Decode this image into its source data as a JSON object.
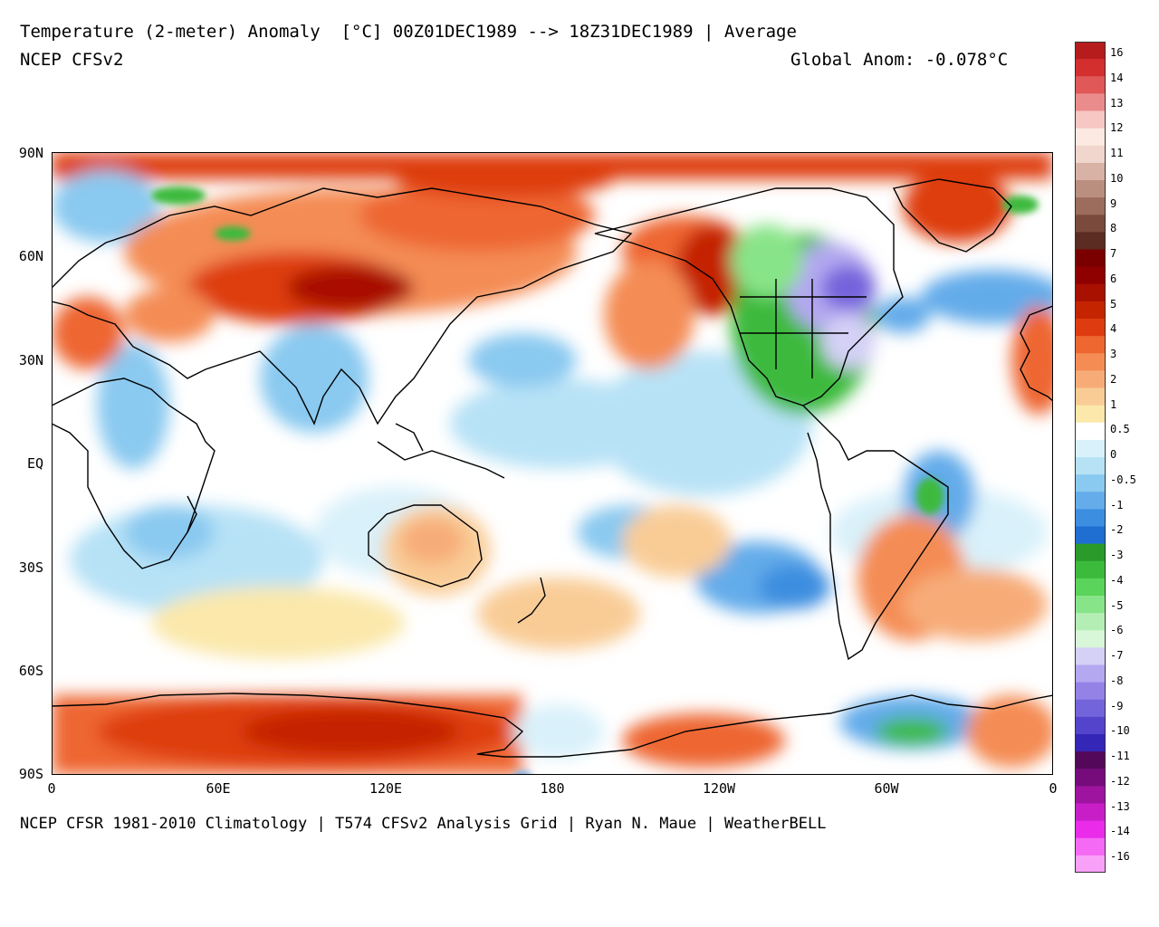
{
  "header": {
    "title": "Temperature (2-meter) Anomaly  [°C] 00Z01DEC1989 --> 18Z31DEC1989 | Average",
    "model": "NCEP CFSv2",
    "global_anomaly": "Global Anom: -0.078°C"
  },
  "footer": {
    "credits": "NCEP CFSR 1981-2010 Climatology | T574 CFSv2 Analysis Grid | Ryan N. Maue | WeatherBELL"
  },
  "map": {
    "projection": "equirectangular",
    "lon_range": [
      0,
      360
    ],
    "lat_range": [
      -90,
      90
    ],
    "lat_labels": [
      "90N",
      "60N",
      "30N",
      "EQ",
      "30S",
      "60S",
      "90S"
    ],
    "lon_labels": [
      "0",
      "60E",
      "120E",
      "180",
      "120W",
      "60W",
      "0"
    ]
  },
  "colorbar": {
    "labels": [
      "16",
      "14",
      "13",
      "12",
      "11",
      "10",
      "9",
      "8",
      "7",
      "6",
      "5",
      "4",
      "3",
      "2",
      "1",
      "0.5",
      "0",
      "-0.5",
      "-1",
      "-2",
      "-3",
      "-4",
      "-5",
      "-6",
      "-7",
      "-8",
      "-9",
      "-10",
      "-11",
      "-12",
      "-13",
      "-14",
      "-16"
    ],
    "colors": [
      "#b71c1c",
      "#d32f2f",
      "#e05858",
      "#ea8c8c",
      "#f6c7c3",
      "#fbe9e2",
      "#f0d6cc",
      "#d8b2a4",
      "#bb8f80",
      "#9c6c5c",
      "#7a4a3c",
      "#5a2c22",
      "#7a0000",
      "#8f0000",
      "#a81000",
      "#c42400",
      "#de3c10",
      "#ee6630",
      "#f48c54",
      "#f7ac78",
      "#f9cc96",
      "#fbe8aa",
      "#ffffff",
      "#d9f1fa",
      "#b7e2f6",
      "#8ac9f0",
      "#64acea",
      "#3c8ee0",
      "#1f6ed2",
      "#2a9a2a",
      "#3cba3c",
      "#5ad45a",
      "#88e488",
      "#b4eeb4",
      "#d8f6d8",
      "#d4d0f6",
      "#b4a8f0",
      "#9482e6",
      "#7464dc",
      "#5444cc",
      "#3426b6",
      "#54085a",
      "#760c7c",
      "#9e149e",
      "#c81ec8",
      "#ea2cea",
      "#f46af4",
      "#f9a0f9"
    ]
  }
}
